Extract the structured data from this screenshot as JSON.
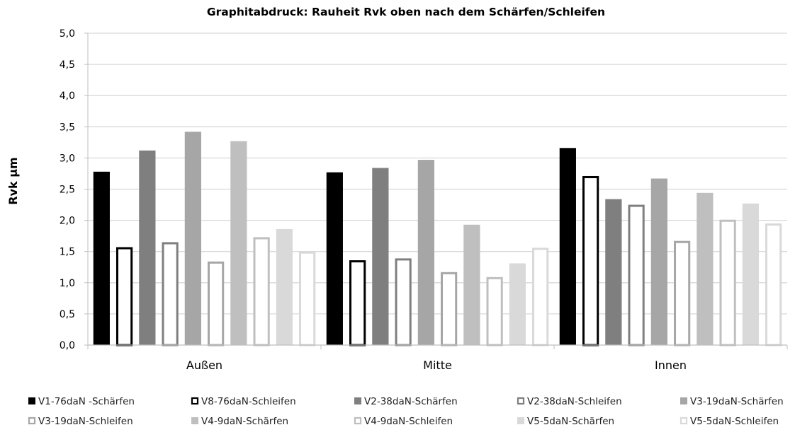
{
  "chart_data": {
    "type": "bar",
    "title": "Graphitabdruck: Rauheit Rvk oben nach dem Schärfen/Schleifen",
    "xlabel": "",
    "ylabel": "Rvk µm",
    "ylim": [
      0,
      5
    ],
    "ystep": 0.5,
    "ytick_labels": [
      "0,0",
      "0,5",
      "1,0",
      "1,5",
      "2,0",
      "2,5",
      "3,0",
      "3,5",
      "4,0",
      "4,5",
      "5,0"
    ],
    "grid": true,
    "legend_position": "bottom",
    "categories": [
      "Außen",
      "Mitte",
      "Innen"
    ],
    "series": [
      {
        "name": "V1-76daN -Schärfen",
        "color": "#000000",
        "style": "filled",
        "values": [
          2.78,
          2.77,
          3.16
        ]
      },
      {
        "name": "V8-76daN-Schleifen",
        "color": "#000000",
        "style": "outline",
        "values": [
          1.57,
          1.36,
          2.71
        ]
      },
      {
        "name": "V2-38daN-Schärfen",
        "color": "#7f7f7f",
        "style": "filled",
        "values": [
          3.12,
          2.84,
          2.34
        ]
      },
      {
        "name": "V2-38daN-Schleifen",
        "color": "#7f7f7f",
        "style": "outline",
        "values": [
          1.65,
          1.39,
          2.25
        ]
      },
      {
        "name": "V3-19daN-Schärfen",
        "color": "#a6a6a6",
        "style": "filled",
        "values": [
          3.42,
          2.97,
          2.67
        ]
      },
      {
        "name": "V3-19daN-Schleifen",
        "color": "#a6a6a6",
        "style": "outline",
        "values": [
          1.34,
          1.17,
          1.67
        ]
      },
      {
        "name": "V4-9daN-Schärfen",
        "color": "#bfbfbf",
        "style": "filled",
        "values": [
          3.27,
          1.93,
          2.44
        ]
      },
      {
        "name": "V4-9daN-Schleifen",
        "color": "#bfbfbf",
        "style": "outline",
        "values": [
          1.73,
          1.09,
          2.01
        ]
      },
      {
        "name": "V5-5daN-Schärfen",
        "color": "#d9d9d9",
        "style": "filled",
        "values": [
          1.86,
          1.31,
          2.27
        ]
      },
      {
        "name": "V5-5daN-Schleifen",
        "color": "#d9d9d9",
        "style": "outline",
        "values": [
          1.5,
          1.56,
          1.95
        ]
      }
    ]
  }
}
